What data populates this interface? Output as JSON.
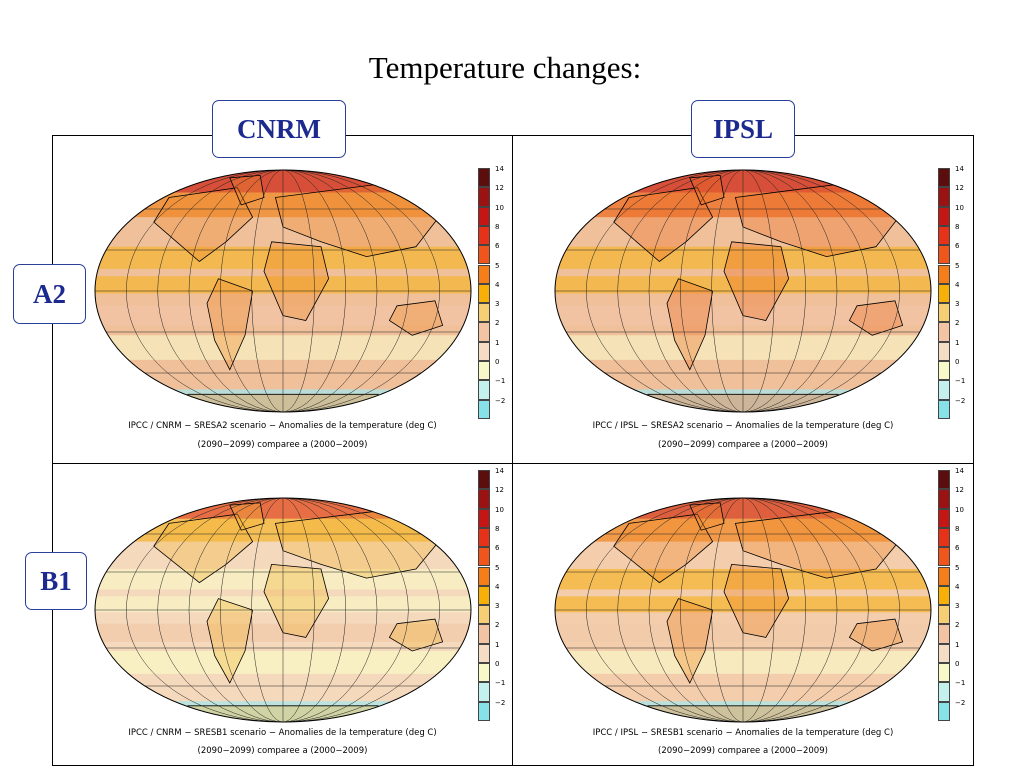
{
  "title": "Temperature changes:",
  "columns": [
    "CNRM",
    "IPSL"
  ],
  "rows": [
    "A2",
    "B1"
  ],
  "colorbar": {
    "labels": [
      "14",
      "12",
      "10",
      "8",
      "6",
      "5",
      "4",
      "3",
      "2",
      "1",
      "0",
      "−1",
      "−2"
    ],
    "colors": [
      "#5c0d0d",
      "#9a1212",
      "#c51616",
      "#e7321a",
      "#f0561c",
      "#f57d1a",
      "#f6b007",
      "#f6cf74",
      "#f2c4a4",
      "#f5dcc4",
      "#f8f9c9",
      "#c4f0ee",
      "#86e2e8"
    ]
  },
  "panels": [
    {
      "model": "CNRM",
      "scenario": "A2",
      "caption_line1": "IPCC / CNRM − SRESA2 scenario − Anomalies de la temperature (deg C)",
      "caption_line2": "(2090−2099) comparee a (2000−2009)",
      "colors": {
        "base": "#f0c09a",
        "warm": "#f4b536",
        "hot": "#f08a2a",
        "ocean": "#f2c4a4",
        "cool": "#f7efc0",
        "cold": "#a9e6ea",
        "red": "#cf2a17"
      }
    },
    {
      "model": "IPSL",
      "scenario": "A2",
      "caption_line1": "IPCC / IPSL − SRESA2 scenario − Anomalies de la temperature (deg C)",
      "caption_line2": "(2090−2099) comparee a (2000−2009)",
      "colors": {
        "base": "#f0c09a",
        "warm": "#f4b536",
        "hot": "#ee6e24",
        "ocean": "#f2c4a4",
        "cool": "#f7efc0",
        "cold": "#a9e6ea",
        "red": "#cf2a17"
      }
    },
    {
      "model": "CNRM",
      "scenario": "B1",
      "caption_line1": "IPCC / CNRM − SRESB1 scenario − Anomalies de la temperature (deg C)",
      "caption_line2": "(2090−2099) comparee a (2000−2009)",
      "colors": {
        "base": "#f5d9bd",
        "warm": "#f8f3c4",
        "hot": "#f4b536",
        "ocean": "#f2c9aa",
        "cool": "#f8f7c6",
        "cold": "#a9e6ea",
        "red": "#e24a1c"
      }
    },
    {
      "model": "IPSL",
      "scenario": "B1",
      "caption_line1": "IPCC / IPSL − SRESB1 scenario − Anomalies de la temperature (deg C)",
      "caption_line2": "(2090−2099) comparee a (2000−2009)",
      "colors": {
        "base": "#f3cdac",
        "warm": "#f4b536",
        "hot": "#f08a2a",
        "ocean": "#f2c9aa",
        "cool": "#f8f3c4",
        "cold": "#a9e6ea",
        "red": "#d63a1a"
      }
    }
  ]
}
